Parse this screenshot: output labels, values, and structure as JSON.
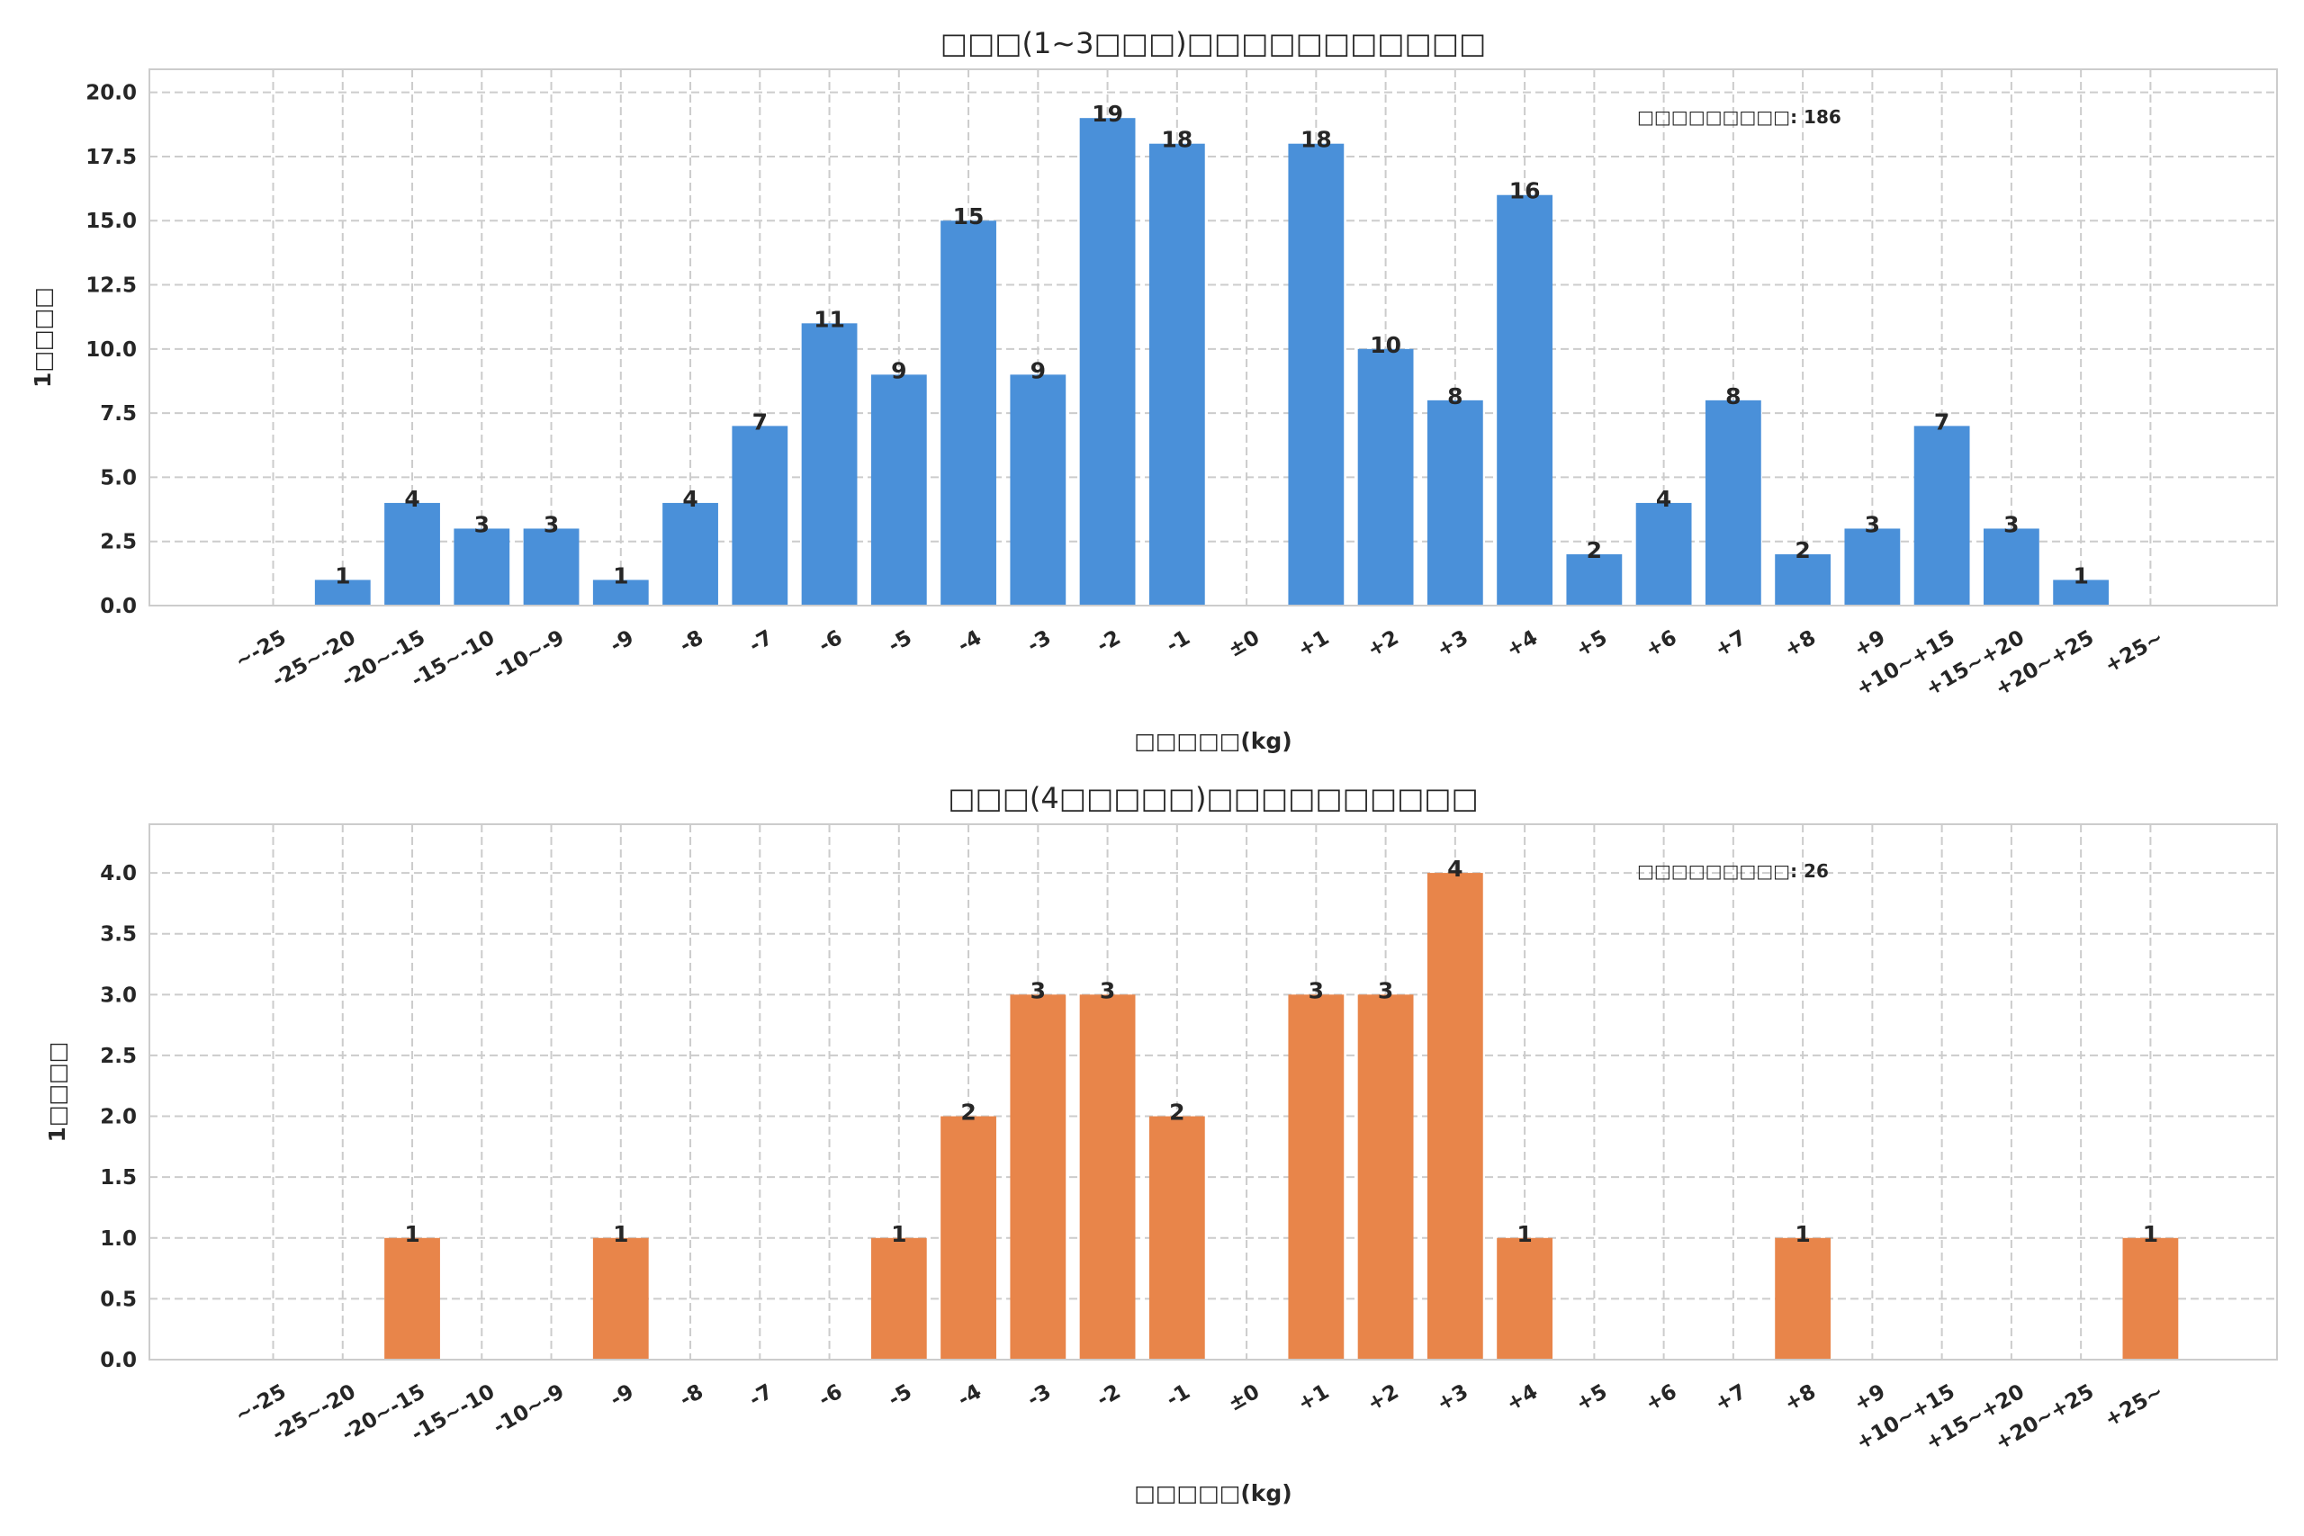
{
  "chart_data": [
    {
      "type": "bar",
      "title": "□□□(1~3□□□)□□□□□□□□□□□",
      "xlabel": "□□□□□(kg)",
      "ylabel": "1□□□□",
      "annotation": "□□□□□□□□□: 186",
      "color": "#4A90D9",
      "ylim": [
        0,
        20.9
      ],
      "yticks": [
        0,
        2.5,
        5,
        7.5,
        10,
        12.5,
        15,
        17.5,
        20
      ],
      "ytick_labels": [
        "0.0",
        "2.5",
        "5.0",
        "7.5",
        "10.0",
        "12.5",
        "15.0",
        "17.5",
        "20.0"
      ],
      "grid": true,
      "categories": [
        "~-25",
        "-25~-20",
        "-20~-15",
        "-15~-10",
        "-10~-9",
        "-9",
        "-8",
        "-7",
        "-6",
        "-5",
        "-4",
        "-3",
        "-2",
        "-1",
        "±0",
        "+1",
        "+2",
        "+3",
        "+4",
        "+5",
        "+6",
        "+7",
        "+8",
        "+9",
        "+10~+15",
        "+15~+20",
        "+20~+25",
        "+25~"
      ],
      "values": [
        0,
        1,
        4,
        3,
        3,
        1,
        4,
        7,
        11,
        9,
        15,
        9,
        19,
        18,
        0,
        18,
        10,
        8,
        16,
        2,
        4,
        8,
        2,
        3,
        7,
        3,
        1,
        0
      ]
    },
    {
      "type": "bar",
      "title": "□□□(4□□□□□)□□□□□□□□□□",
      "xlabel": "□□□□□(kg)",
      "ylabel": "1□□□□",
      "annotation": "□□□□□□□□□: 26",
      "color": "#E8854A",
      "ylim": [
        0,
        4.4
      ],
      "yticks": [
        0,
        0.5,
        1,
        1.5,
        2,
        2.5,
        3,
        3.5,
        4
      ],
      "ytick_labels": [
        "0.0",
        "0.5",
        "1.0",
        "1.5",
        "2.0",
        "2.5",
        "3.0",
        "3.5",
        "4.0"
      ],
      "grid": true,
      "categories": [
        "~-25",
        "-25~-20",
        "-20~-15",
        "-15~-10",
        "-10~-9",
        "-9",
        "-8",
        "-7",
        "-6",
        "-5",
        "-4",
        "-3",
        "-2",
        "-1",
        "±0",
        "+1",
        "+2",
        "+3",
        "+4",
        "+5",
        "+6",
        "+7",
        "+8",
        "+9",
        "+10~+15",
        "+15~+20",
        "+20~+25",
        "+25~"
      ],
      "values": [
        0,
        0,
        1,
        0,
        0,
        1,
        0,
        0,
        0,
        1,
        2,
        3,
        3,
        2,
        0,
        3,
        3,
        4,
        1,
        0,
        0,
        0,
        1,
        0,
        0,
        0,
        0,
        1
      ]
    }
  ]
}
